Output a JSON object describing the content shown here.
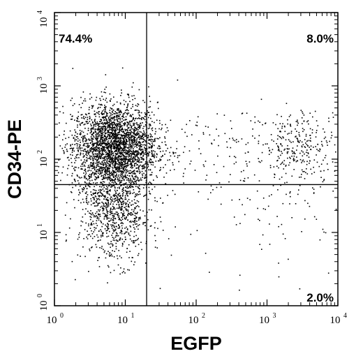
{
  "chart_data": {
    "type": "scatter",
    "xlabel": "EGFP",
    "ylabel": "CD34-PE",
    "x_scale": "log",
    "y_scale": "log",
    "xlim": [
      1,
      10000
    ],
    "ylim": [
      1,
      10000
    ],
    "x_ticks": [
      {
        "base": "10",
        "exp": "0",
        "value": 1
      },
      {
        "base": "10",
        "exp": "1",
        "value": 10
      },
      {
        "base": "10",
        "exp": "2",
        "value": 100
      },
      {
        "base": "10",
        "exp": "3",
        "value": 1000
      },
      {
        "base": "10",
        "exp": "4",
        "value": 10000
      }
    ],
    "y_ticks": [
      {
        "base": "10",
        "exp": "0",
        "value": 1
      },
      {
        "base": "10",
        "exp": "1",
        "value": 10
      },
      {
        "base": "10",
        "exp": "2",
        "value": 100
      },
      {
        "base": "10",
        "exp": "3",
        "value": 1000
      },
      {
        "base": "10",
        "exp": "4",
        "value": 10000
      }
    ],
    "gates": {
      "x": 20,
      "y": 45
    },
    "quadrant_labels": {
      "upper_left": "74.4%",
      "upper_right": "8.0%",
      "lower_right": "2.0%"
    },
    "populations": [
      {
        "x_center": 7,
        "y_center": 150,
        "x_spread_decades": 0.3,
        "y_spread_decades": 0.3,
        "count": 2800
      },
      {
        "x_center": 7,
        "y_center": 20,
        "x_spread_decades": 0.25,
        "y_spread_decades": 0.35,
        "count": 900
      },
      {
        "x_center": 3000,
        "y_center": 150,
        "x_spread_decades": 0.25,
        "y_spread_decades": 0.25,
        "count": 260
      },
      {
        "x_center": 300,
        "y_center": 150,
        "x_spread_decades": 0.6,
        "y_spread_decades": 0.3,
        "count": 140
      },
      {
        "x_center": 800,
        "y_center": 15,
        "x_spread_decades": 0.7,
        "y_spread_decades": 0.4,
        "count": 90
      }
    ],
    "colors": {
      "points": "#000000",
      "axes": "#000000",
      "background": "#ffffff"
    }
  }
}
